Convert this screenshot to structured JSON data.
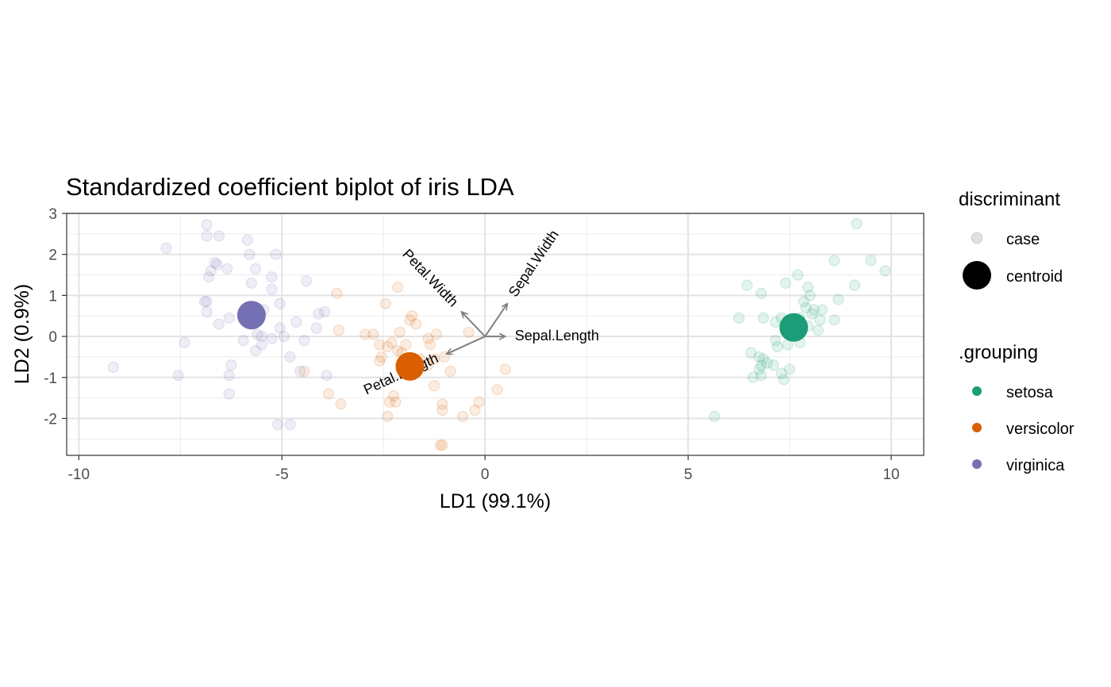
{
  "chart_data": {
    "type": "scatter",
    "title": "Standardized coefficient biplot of iris LDA",
    "xlabel": "LD1 (99.1%)",
    "ylabel": "LD2 (0.9%)",
    "xlim": [
      -10.3,
      10.8
    ],
    "ylim": [
      -2.9,
      3.0
    ],
    "x_ticks": [
      -10,
      -5,
      0,
      5,
      10
    ],
    "x_tick_labels": [
      "-10",
      "-5",
      "0",
      "5",
      "10"
    ],
    "y_ticks": [
      3,
      2,
      1,
      0,
      -1,
      -2
    ],
    "y_tick_labels": [
      "3",
      "2",
      "1",
      "0",
      "-1",
      "-2"
    ],
    "grid": true,
    "legend_position": "right",
    "legends": [
      {
        "title": "discriminant",
        "entries": [
          "case",
          "centroid"
        ]
      },
      {
        "title": ".grouping",
        "entries": [
          "setosa",
          "versicolor",
          "virginica"
        ]
      }
    ],
    "colors": {
      "setosa": "#1b9e77",
      "versicolor": "#d95f02",
      "virginica": "#7570b3",
      "arrow": "#7f7f7f"
    },
    "series": [
      {
        "name": "setosa",
        "centroid": [
          7.6,
          0.22
        ],
        "points": [
          [
            9.15,
            2.75
          ],
          [
            9.5,
            1.85
          ],
          [
            9.85,
            1.6
          ],
          [
            8.6,
            1.85
          ],
          [
            9.1,
            1.25
          ],
          [
            8.7,
            0.9
          ],
          [
            7.7,
            1.5
          ],
          [
            7.4,
            1.3
          ],
          [
            7.95,
            1.2
          ],
          [
            8.0,
            1.0
          ],
          [
            7.85,
            0.85
          ],
          [
            7.9,
            0.7
          ],
          [
            8.1,
            0.65
          ],
          [
            8.3,
            0.65
          ],
          [
            8.6,
            0.4
          ],
          [
            8.25,
            0.4
          ],
          [
            8.05,
            0.55
          ],
          [
            7.75,
            0.45
          ],
          [
            7.6,
            0.4
          ],
          [
            7.3,
            0.45
          ],
          [
            7.15,
            0.35
          ],
          [
            6.85,
            0.45
          ],
          [
            6.45,
            1.25
          ],
          [
            6.8,
            1.05
          ],
          [
            6.25,
            0.45
          ],
          [
            7.4,
            0.15
          ],
          [
            7.7,
            0.1
          ],
          [
            7.15,
            -0.1
          ],
          [
            7.2,
            -0.25
          ],
          [
            7.45,
            -0.2
          ],
          [
            6.55,
            -0.4
          ],
          [
            6.75,
            -0.5
          ],
          [
            6.85,
            -0.55
          ],
          [
            6.95,
            -0.65
          ],
          [
            7.1,
            -0.7
          ],
          [
            6.8,
            -0.7
          ],
          [
            6.6,
            -1.0
          ],
          [
            6.8,
            -0.95
          ],
          [
            7.3,
            -0.9
          ],
          [
            7.35,
            -1.05
          ],
          [
            7.5,
            -0.8
          ],
          [
            5.65,
            -1.95
          ],
          [
            7.95,
            0.25
          ],
          [
            8.2,
            0.15
          ],
          [
            7.75,
            -0.15
          ],
          [
            6.75,
            -0.8
          ]
        ]
      },
      {
        "name": "versicolor",
        "centroid": [
          -1.85,
          -0.73
        ],
        "points": [
          [
            -1.05,
            -2.65
          ],
          [
            -1.1,
            -2.65
          ],
          [
            -2.4,
            -1.95
          ],
          [
            -2.2,
            -1.6
          ],
          [
            -2.35,
            -1.6
          ],
          [
            -2.25,
            -1.45
          ],
          [
            -3.55,
            -1.65
          ],
          [
            -3.85,
            -1.4
          ],
          [
            -1.05,
            -1.65
          ],
          [
            -1.05,
            -1.8
          ],
          [
            -0.55,
            -1.95
          ],
          [
            -0.25,
            -1.8
          ],
          [
            -0.15,
            -1.6
          ],
          [
            0.3,
            -1.3
          ],
          [
            0.5,
            -0.8
          ],
          [
            -1.25,
            -1.2
          ],
          [
            -0.85,
            -0.85
          ],
          [
            -1.4,
            -0.7
          ],
          [
            -2.6,
            -0.6
          ],
          [
            -2.4,
            -0.25
          ],
          [
            -2.55,
            -0.5
          ],
          [
            -2.95,
            0.05
          ],
          [
            -2.75,
            0.05
          ],
          [
            -2.6,
            -0.2
          ],
          [
            -2.15,
            -0.35
          ],
          [
            -1.4,
            -0.05
          ],
          [
            -1.2,
            0.05
          ],
          [
            -1.35,
            -0.2
          ],
          [
            -1.25,
            -0.55
          ],
          [
            -0.4,
            0.1
          ],
          [
            -1.7,
            0.3
          ],
          [
            -1.85,
            0.4
          ],
          [
            -1.8,
            0.5
          ],
          [
            -2.1,
            0.1
          ],
          [
            -2.45,
            0.8
          ],
          [
            -2.15,
            1.2
          ],
          [
            -3.6,
            0.15
          ],
          [
            -3.65,
            1.05
          ],
          [
            -4.45,
            -0.85
          ],
          [
            -2.05,
            -0.4
          ],
          [
            -1.95,
            -0.2
          ],
          [
            -2.3,
            -0.15
          ],
          [
            -1.6,
            -0.55
          ],
          [
            -1.0,
            -0.5
          ]
        ]
      },
      {
        "name": "virginica",
        "centroid": [
          -5.75,
          0.52
        ],
        "points": [
          [
            -6.85,
            2.72
          ],
          [
            -6.85,
            2.45
          ],
          [
            -6.55,
            2.45
          ],
          [
            -5.85,
            2.35
          ],
          [
            -5.15,
            2.0
          ],
          [
            -5.8,
            2.0
          ],
          [
            -7.85,
            2.15
          ],
          [
            -6.65,
            1.8
          ],
          [
            -6.6,
            1.75
          ],
          [
            -6.75,
            1.6
          ],
          [
            -6.35,
            1.65
          ],
          [
            -5.65,
            1.65
          ],
          [
            -5.25,
            1.45
          ],
          [
            -5.25,
            1.15
          ],
          [
            -4.4,
            1.35
          ],
          [
            -6.8,
            1.45
          ],
          [
            -5.75,
            1.3
          ],
          [
            -6.85,
            0.85
          ],
          [
            -6.9,
            0.85
          ],
          [
            -5.05,
            0.8
          ],
          [
            -6.85,
            0.6
          ],
          [
            -3.95,
            0.6
          ],
          [
            -4.1,
            0.55
          ],
          [
            -6.3,
            0.45
          ],
          [
            -5.45,
            0.65
          ],
          [
            -4.65,
            0.35
          ],
          [
            -6.55,
            0.3
          ],
          [
            -5.05,
            0.2
          ],
          [
            -4.15,
            0.2
          ],
          [
            -5.6,
            0.05
          ],
          [
            -5.5,
            0.0
          ],
          [
            -5.25,
            -0.05
          ],
          [
            -4.95,
            0.0
          ],
          [
            -5.95,
            -0.1
          ],
          [
            -5.5,
            -0.2
          ],
          [
            -4.45,
            -0.1
          ],
          [
            -7.4,
            -0.15
          ],
          [
            -5.65,
            -0.35
          ],
          [
            -4.8,
            -0.5
          ],
          [
            -6.25,
            -0.7
          ],
          [
            -4.55,
            -0.85
          ],
          [
            -3.9,
            -0.95
          ],
          [
            -6.3,
            -0.95
          ],
          [
            -7.55,
            -0.95
          ],
          [
            -9.15,
            -0.75
          ],
          [
            -6.3,
            -1.4
          ],
          [
            -5.1,
            -2.15
          ],
          [
            -4.8,
            -2.15
          ]
        ]
      }
    ],
    "vectors": [
      {
        "name": "Petal.Width",
        "end": [
          -0.58,
          0.6
        ]
      },
      {
        "name": "Sepal.Width",
        "end": [
          0.55,
          0.8
        ]
      },
      {
        "name": "Sepal.Length",
        "end": [
          0.5,
          0.0
        ]
      },
      {
        "name": "Petal.Length",
        "end": [
          -0.95,
          -0.43
        ]
      }
    ]
  }
}
